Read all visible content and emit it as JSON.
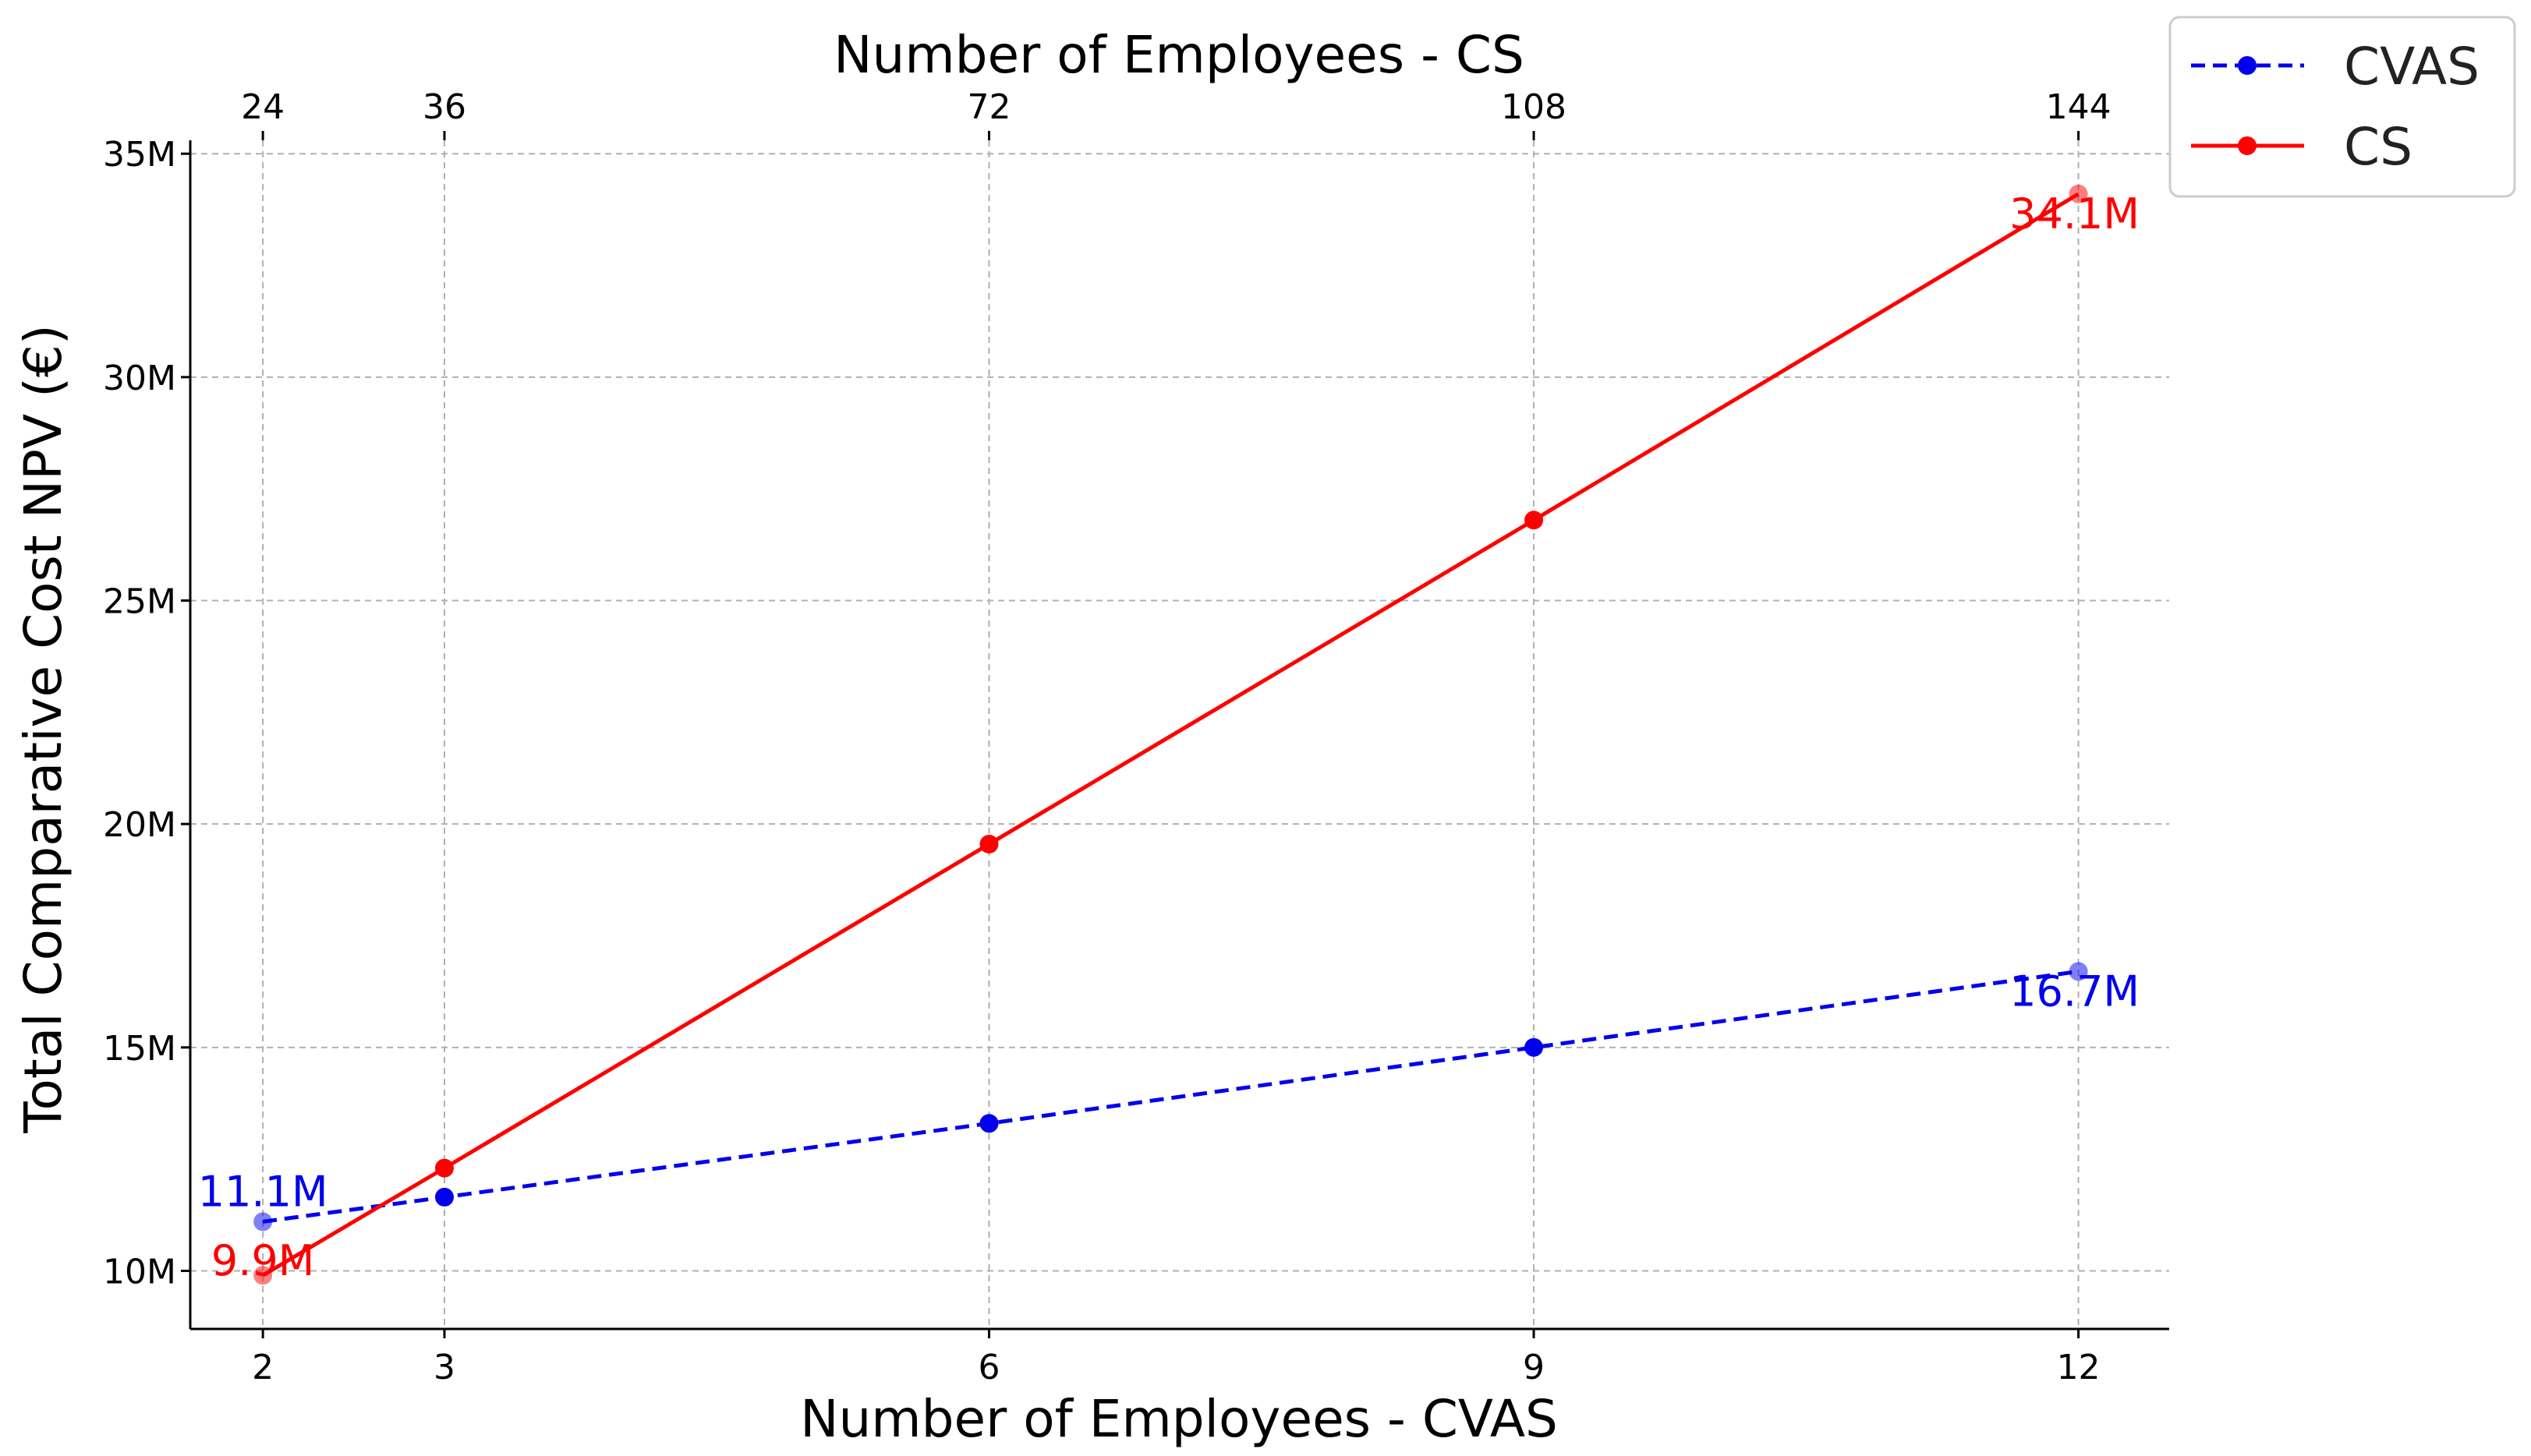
{
  "chart_data": {
    "type": "line",
    "xlabel": "Number of Employees - CVAS",
    "x2label": "Number of Employees - CS",
    "ylabel": "Total Comparative Cost NPV (€)",
    "x": [
      2,
      3,
      6,
      9,
      12
    ],
    "x_ticks": [
      "2",
      "3",
      "6",
      "9",
      "12"
    ],
    "x2_ticks": [
      "24",
      "36",
      "72",
      "108",
      "144"
    ],
    "xlim": [
      1.6,
      12.5
    ],
    "ylim": [
      8.7,
      35.3
    ],
    "y_ticks": [
      10,
      15,
      20,
      25,
      30,
      35
    ],
    "y_tick_labels": [
      "10M",
      "15M",
      "20M",
      "25M",
      "30M",
      "35M"
    ],
    "grid": true,
    "legend_position": "outside-top-right",
    "series": [
      {
        "name": "CVAS",
        "values": [
          11.1,
          11.65,
          13.3,
          15.0,
          16.7
        ],
        "color": "#0000ee",
        "style": "dashed",
        "end_labels": [
          "11.1M",
          "16.7M"
        ]
      },
      {
        "name": "CS",
        "values": [
          9.9,
          12.3,
          19.55,
          26.8,
          34.1
        ],
        "color": "#ff0000",
        "style": "solid",
        "end_labels": [
          "9.9M",
          "34.1M"
        ]
      }
    ]
  }
}
